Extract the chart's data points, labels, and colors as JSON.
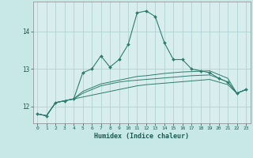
{
  "xlabel": "Humidex (Indice chaleur)",
  "x_values": [
    0,
    1,
    2,
    3,
    4,
    5,
    6,
    7,
    8,
    9,
    10,
    11,
    12,
    13,
    14,
    15,
    16,
    17,
    18,
    19,
    20,
    21,
    22,
    23
  ],
  "series": [
    [
      11.8,
      11.75,
      12.1,
      12.15,
      12.2,
      12.9,
      13.0,
      13.35,
      13.05,
      13.25,
      13.65,
      14.5,
      14.55,
      14.4,
      13.7,
      13.25,
      13.25,
      13.0,
      12.95,
      12.9,
      12.75,
      12.65,
      12.35,
      12.45
    ],
    [
      11.8,
      11.75,
      12.1,
      12.15,
      12.2,
      12.4,
      12.5,
      12.6,
      12.65,
      12.7,
      12.75,
      12.8,
      12.82,
      12.85,
      12.88,
      12.9,
      12.92,
      12.93,
      12.94,
      12.95,
      12.85,
      12.75,
      12.35,
      12.45
    ],
    [
      11.8,
      11.75,
      12.1,
      12.15,
      12.2,
      12.35,
      12.45,
      12.55,
      12.6,
      12.65,
      12.68,
      12.7,
      12.72,
      12.74,
      12.76,
      12.78,
      12.8,
      12.82,
      12.83,
      12.84,
      12.75,
      12.65,
      12.35,
      12.45
    ],
    [
      11.8,
      11.75,
      12.1,
      12.15,
      12.2,
      12.25,
      12.3,
      12.35,
      12.4,
      12.45,
      12.5,
      12.55,
      12.58,
      12.6,
      12.62,
      12.64,
      12.66,
      12.68,
      12.7,
      12.72,
      12.65,
      12.58,
      12.35,
      12.45
    ]
  ],
  "line_color": "#2e7d6e",
  "marker_color": "#2e7d6e",
  "bg_color": "#d8eeee",
  "grid_color": "#aacccc",
  "ylim": [
    11.55,
    14.8
  ],
  "yticks": [
    12,
    13,
    14
  ],
  "fig_bg": "#c8e8e8"
}
